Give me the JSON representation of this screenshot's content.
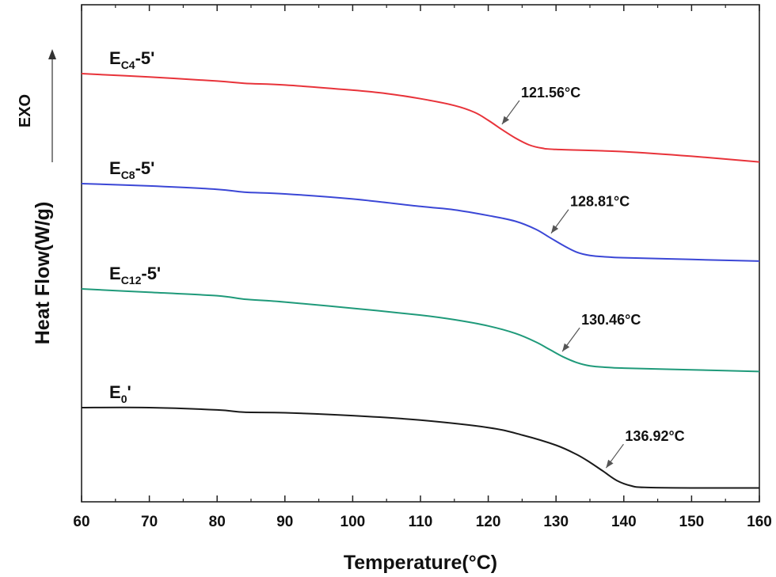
{
  "chart_data": {
    "type": "line",
    "xlabel": "Temperature(°C)",
    "ylabel": "Heat Flow(W/g)",
    "direction_label": "EXO",
    "xlim": [
      60,
      160
    ],
    "x_ticks": [
      60,
      70,
      80,
      90,
      100,
      110,
      120,
      130,
      140,
      150,
      160
    ],
    "y_ticks_shown": false,
    "grid": false,
    "series": [
      {
        "key": "ec4",
        "label_main": "E",
        "label_sub": "C4",
        "label_suffix": "-5'",
        "color": "#e8333a",
        "offset": 3,
        "points": [
          [
            60,
            0.0
          ],
          [
            70,
            -0.06
          ],
          [
            80,
            -0.13
          ],
          [
            84,
            -0.17
          ],
          [
            90,
            -0.2
          ],
          [
            100,
            -0.29
          ],
          [
            105,
            -0.35
          ],
          [
            110,
            -0.44
          ],
          [
            115,
            -0.56
          ],
          [
            118,
            -0.68
          ],
          [
            120,
            -0.82
          ],
          [
            122,
            -0.98
          ],
          [
            124,
            -1.13
          ],
          [
            126,
            -1.25
          ],
          [
            128,
            -1.31
          ],
          [
            130,
            -1.33
          ],
          [
            140,
            -1.37
          ],
          [
            150,
            -1.45
          ],
          [
            160,
            -1.55
          ]
        ],
        "annotation": {
          "text": "121.56°C",
          "x": 121.56
        }
      },
      {
        "key": "ec8",
        "label_main": "E",
        "label_sub": "C8",
        "label_suffix": "-5'",
        "color": "#3b47d6",
        "offset": 2,
        "points": [
          [
            60,
            0.0
          ],
          [
            70,
            -0.04
          ],
          [
            80,
            -0.1
          ],
          [
            84,
            -0.15
          ],
          [
            90,
            -0.18
          ],
          [
            100,
            -0.27
          ],
          [
            110,
            -0.4
          ],
          [
            115,
            -0.46
          ],
          [
            120,
            -0.56
          ],
          [
            124,
            -0.66
          ],
          [
            127,
            -0.8
          ],
          [
            129,
            -0.94
          ],
          [
            131,
            -1.08
          ],
          [
            133,
            -1.2
          ],
          [
            135,
            -1.26
          ],
          [
            138,
            -1.29
          ],
          [
            140,
            -1.3
          ],
          [
            150,
            -1.33
          ],
          [
            160,
            -1.36
          ]
        ],
        "annotation": {
          "text": "128.81°C",
          "x": 128.81
        }
      },
      {
        "key": "ec12",
        "label_main": "E",
        "label_sub": "C12",
        "label_suffix": "-5'",
        "color": "#1f9a7a",
        "offset": 1,
        "points": [
          [
            60,
            0.0
          ],
          [
            70,
            -0.06
          ],
          [
            80,
            -0.12
          ],
          [
            84,
            -0.18
          ],
          [
            90,
            -0.23
          ],
          [
            100,
            -0.34
          ],
          [
            110,
            -0.46
          ],
          [
            115,
            -0.54
          ],
          [
            120,
            -0.65
          ],
          [
            124,
            -0.78
          ],
          [
            127,
            -0.93
          ],
          [
            129,
            -1.06
          ],
          [
            131,
            -1.19
          ],
          [
            133,
            -1.29
          ],
          [
            135,
            -1.35
          ],
          [
            138,
            -1.38
          ],
          [
            140,
            -1.39
          ],
          [
            150,
            -1.42
          ],
          [
            160,
            -1.45
          ]
        ],
        "annotation": {
          "text": "130.46°C",
          "x": 130.46
        }
      },
      {
        "key": "e0",
        "label_main": "E",
        "label_sub": "0",
        "label_suffix": "'",
        "color": "#1a1a1a",
        "offset": 0,
        "points": [
          [
            60,
            0.0
          ],
          [
            70,
            0.0
          ],
          [
            80,
            -0.04
          ],
          [
            84,
            -0.08
          ],
          [
            90,
            -0.09
          ],
          [
            100,
            -0.14
          ],
          [
            110,
            -0.22
          ],
          [
            120,
            -0.35
          ],
          [
            125,
            -0.48
          ],
          [
            130,
            -0.66
          ],
          [
            133,
            -0.82
          ],
          [
            135,
            -0.96
          ],
          [
            137,
            -1.12
          ],
          [
            139,
            -1.28
          ],
          [
            141,
            -1.37
          ],
          [
            143,
            -1.4
          ],
          [
            150,
            -1.41
          ],
          [
            160,
            -1.41
          ]
        ],
        "annotation": {
          "text": "136.92°C",
          "x": 136.92
        }
      }
    ]
  }
}
